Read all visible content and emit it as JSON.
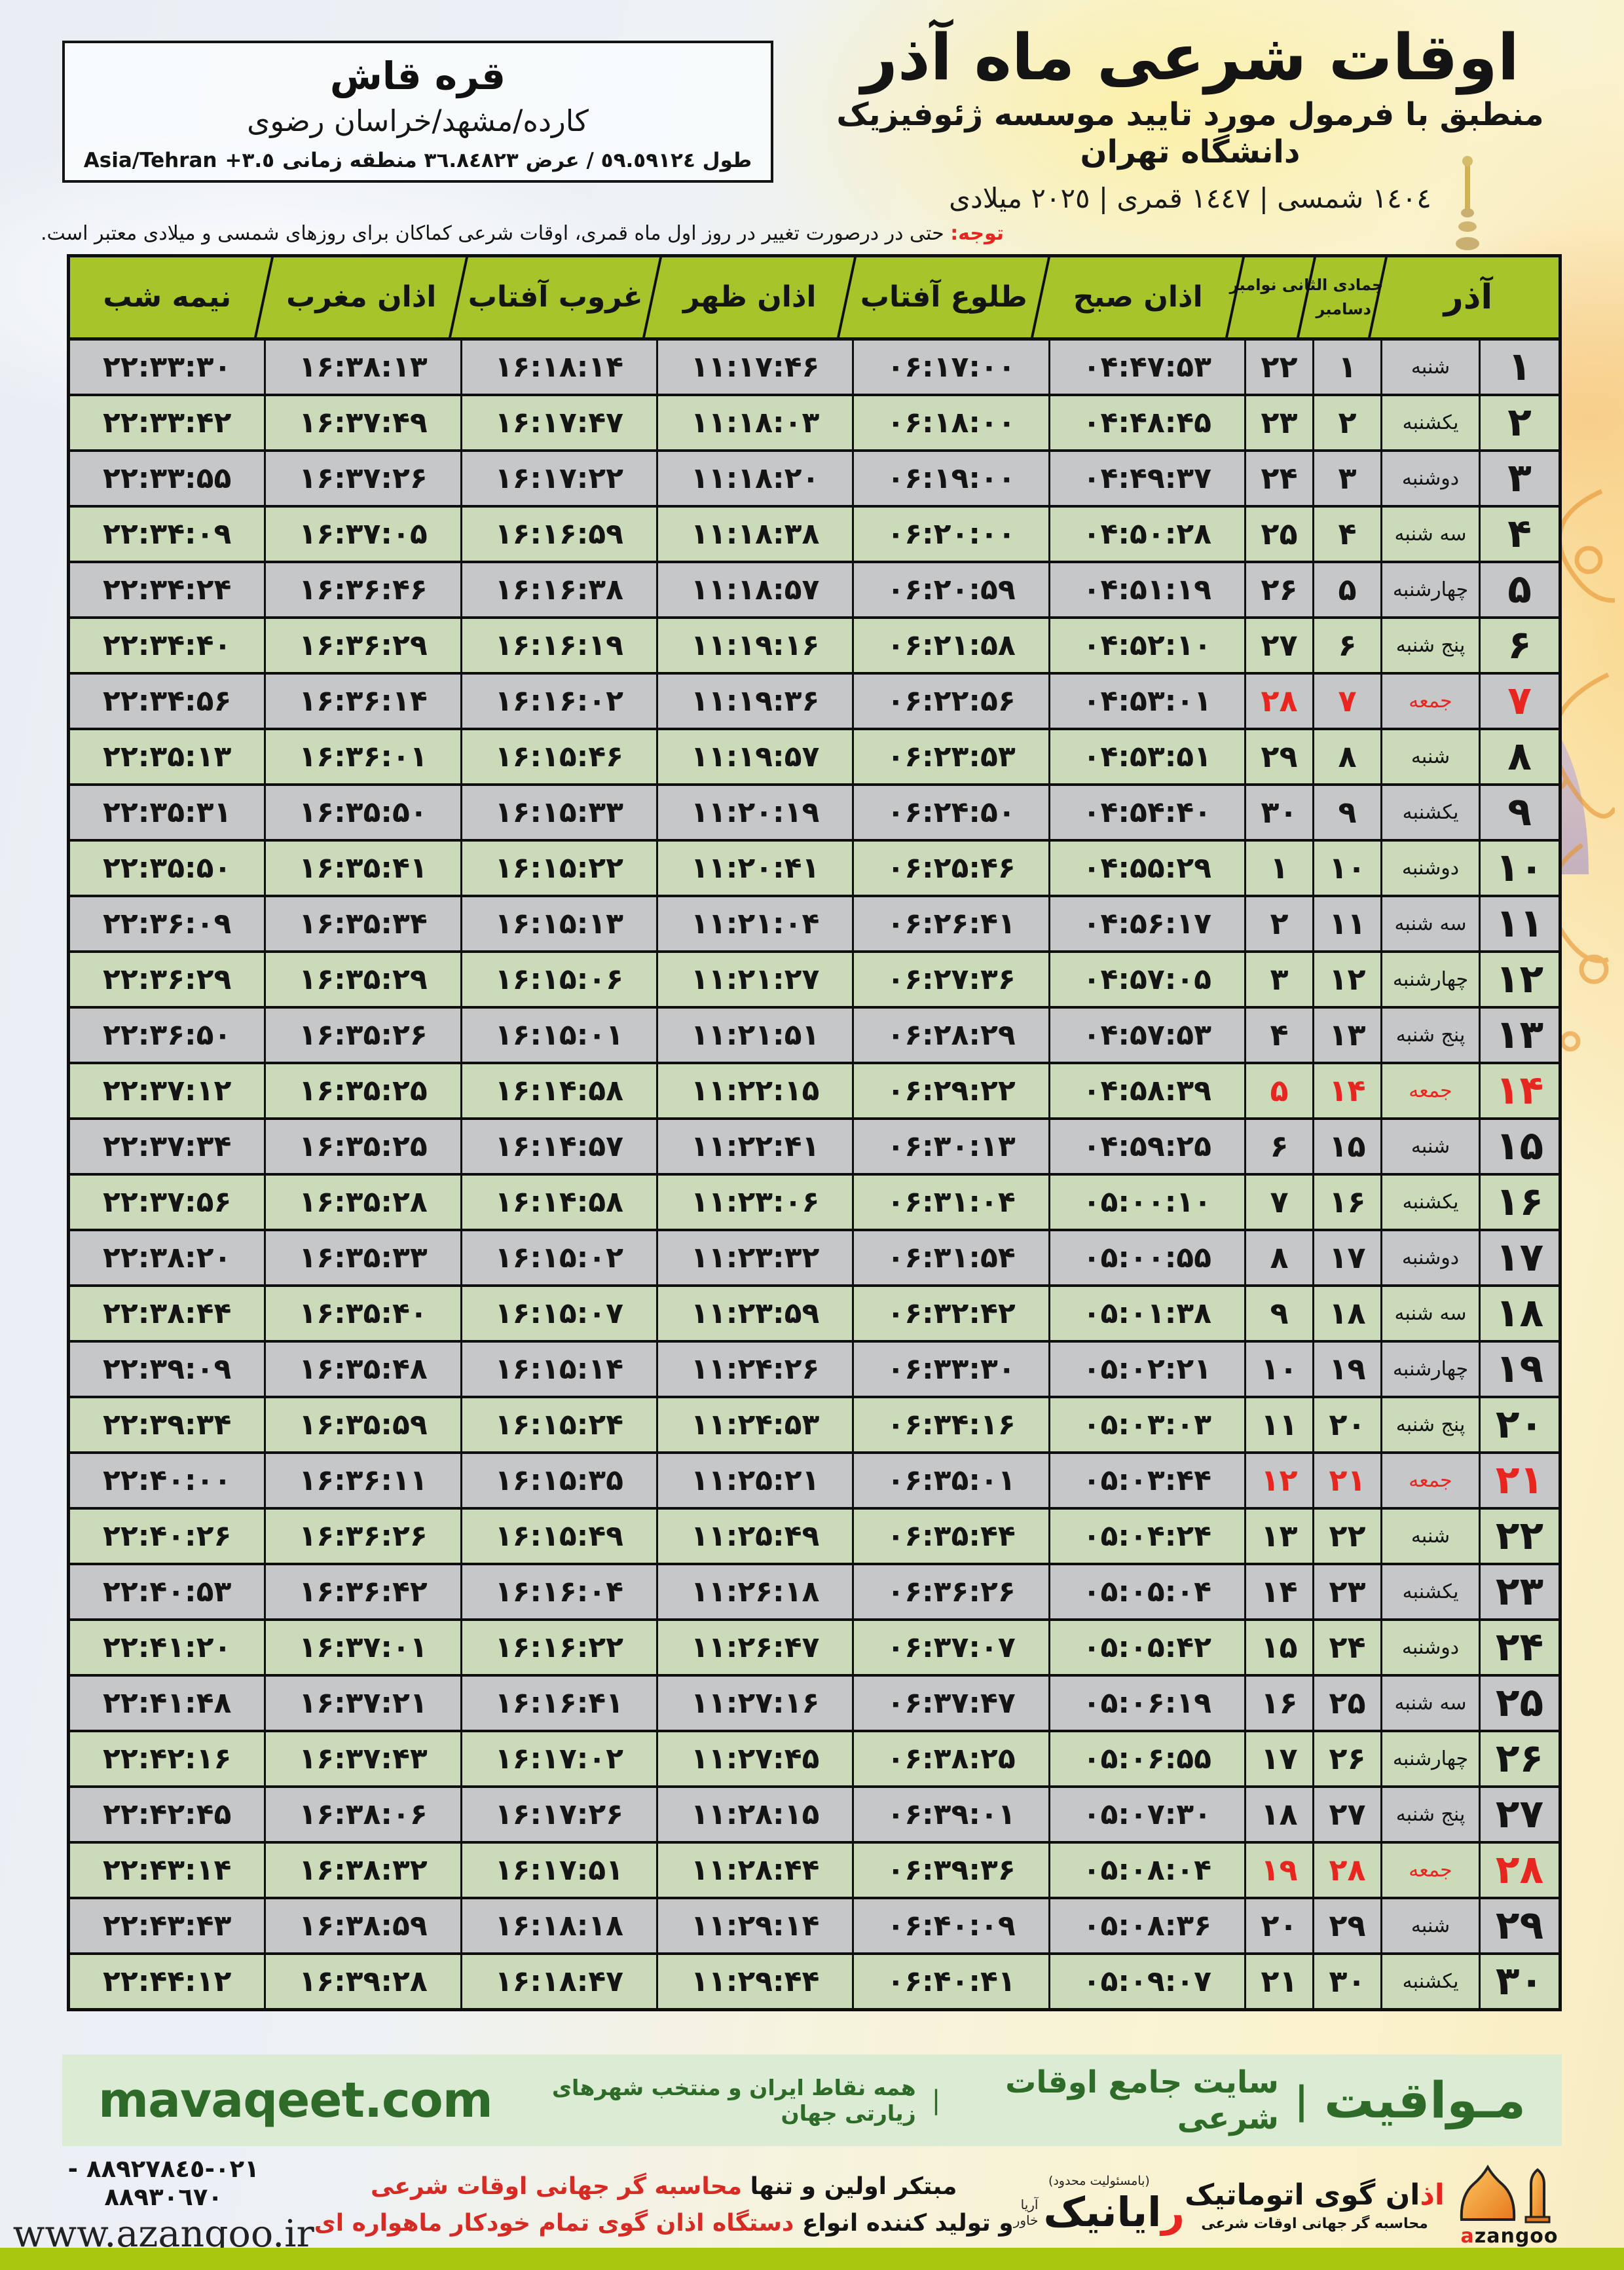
{
  "meta": {
    "title": "اوقات شرعی ماه آذر",
    "subtitle": "منطبق با فرمول مورد تایید موسسه ژئوفیزیک دانشگاه تهران",
    "dates": "١٤٠٤ شمسی | ١٤٤٧ قمری | ٢٠٢٥ میلادی"
  },
  "location": {
    "name": "قره قاش",
    "region": "کارده/مشهد/خراسان رضوی",
    "coords": "طول ٥٩.٥٩١٢٤ / عرض ٣٦.٨٤٨٢٣ منطقه زمانی",
    "tz_offset": "+٣.٥",
    "tz": "Asia/Tehran"
  },
  "note": {
    "label": "توجه:",
    "text": "حتی در درصورت تغییر در روز اول ماه قمری، اوقات شرعی کماکان برای روزهای شمسی و میلادی معتبر است."
  },
  "table": {
    "headers": {
      "azar": "آذر",
      "months_line1": "جمادی الثانی نوامبر",
      "months_line2": "دسامبر",
      "fajr": "اذان صبح",
      "sunrise": "طلوع آفتاب",
      "noon": "اذان ظهر",
      "sunset": "غروب آفتاب",
      "maghrib": "اذان مغرب",
      "midnight": "نیمه شب"
    },
    "rows": [
      {
        "azar": "۱",
        "weekday": "شنبه",
        "hijri": "۱",
        "greg": "۲۲",
        "fajr": "۰۴:۴۷:۵۳",
        "sunrise": "۰۶:۱۷:۰۰",
        "noon": "۱۱:۱۷:۴۶",
        "sunset": "۱۶:۱۸:۱۴",
        "maghrib": "۱۶:۳۸:۱۳",
        "midnight": "۲۲:۳۳:۳۰"
      },
      {
        "azar": "۲",
        "weekday": "یکشنبه",
        "hijri": "۲",
        "greg": "۲۳",
        "fajr": "۰۴:۴۸:۴۵",
        "sunrise": "۰۶:۱۸:۰۰",
        "noon": "۱۱:۱۸:۰۳",
        "sunset": "۱۶:۱۷:۴۷",
        "maghrib": "۱۶:۳۷:۴۹",
        "midnight": "۲۲:۳۳:۴۲"
      },
      {
        "azar": "۳",
        "weekday": "دوشنبه",
        "hijri": "۳",
        "greg": "۲۴",
        "fajr": "۰۴:۴۹:۳۷",
        "sunrise": "۰۶:۱۹:۰۰",
        "noon": "۱۱:۱۸:۲۰",
        "sunset": "۱۶:۱۷:۲۲",
        "maghrib": "۱۶:۳۷:۲۶",
        "midnight": "۲۲:۳۳:۵۵"
      },
      {
        "azar": "۴",
        "weekday": "سه شنبه",
        "hijri": "۴",
        "greg": "۲۵",
        "fajr": "۰۴:۵۰:۲۸",
        "sunrise": "۰۶:۲۰:۰۰",
        "noon": "۱۱:۱۸:۳۸",
        "sunset": "۱۶:۱۶:۵۹",
        "maghrib": "۱۶:۳۷:۰۵",
        "midnight": "۲۲:۳۴:۰۹"
      },
      {
        "azar": "۵",
        "weekday": "چهارشنبه",
        "hijri": "۵",
        "greg": "۲۶",
        "fajr": "۰۴:۵۱:۱۹",
        "sunrise": "۰۶:۲۰:۵۹",
        "noon": "۱۱:۱۸:۵۷",
        "sunset": "۱۶:۱۶:۳۸",
        "maghrib": "۱۶:۳۶:۴۶",
        "midnight": "۲۲:۳۴:۲۴"
      },
      {
        "azar": "۶",
        "weekday": "پنج شنبه",
        "hijri": "۶",
        "greg": "۲۷",
        "fajr": "۰۴:۵۲:۱۰",
        "sunrise": "۰۶:۲۱:۵۸",
        "noon": "۱۱:۱۹:۱۶",
        "sunset": "۱۶:۱۶:۱۹",
        "maghrib": "۱۶:۳۶:۲۹",
        "midnight": "۲۲:۳۴:۴۰"
      },
      {
        "azar": "۷",
        "weekday": "جمعه",
        "hijri": "۷",
        "greg": "۲۸",
        "fajr": "۰۴:۵۳:۰۱",
        "sunrise": "۰۶:۲۲:۵۶",
        "noon": "۱۱:۱۹:۳۶",
        "sunset": "۱۶:۱۶:۰۲",
        "maghrib": "۱۶:۳۶:۱۴",
        "midnight": "۲۲:۳۴:۵۶"
      },
      {
        "azar": "۸",
        "weekday": "شنبه",
        "hijri": "۸",
        "greg": "۲۹",
        "fajr": "۰۴:۵۳:۵۱",
        "sunrise": "۰۶:۲۳:۵۳",
        "noon": "۱۱:۱۹:۵۷",
        "sunset": "۱۶:۱۵:۴۶",
        "maghrib": "۱۶:۳۶:۰۱",
        "midnight": "۲۲:۳۵:۱۳"
      },
      {
        "azar": "۹",
        "weekday": "یکشنبه",
        "hijri": "۹",
        "greg": "۳۰",
        "fajr": "۰۴:۵۴:۴۰",
        "sunrise": "۰۶:۲۴:۵۰",
        "noon": "۱۱:۲۰:۱۹",
        "sunset": "۱۶:۱۵:۳۳",
        "maghrib": "۱۶:۳۵:۵۰",
        "midnight": "۲۲:۳۵:۳۱"
      },
      {
        "azar": "۱۰",
        "weekday": "دوشنبه",
        "hijri": "۱۰",
        "greg": "۱",
        "fajr": "۰۴:۵۵:۲۹",
        "sunrise": "۰۶:۲۵:۴۶",
        "noon": "۱۱:۲۰:۴۱",
        "sunset": "۱۶:۱۵:۲۲",
        "maghrib": "۱۶:۳۵:۴۱",
        "midnight": "۲۲:۳۵:۵۰"
      },
      {
        "azar": "۱۱",
        "weekday": "سه شنبه",
        "hijri": "۱۱",
        "greg": "۲",
        "fajr": "۰۴:۵۶:۱۷",
        "sunrise": "۰۶:۲۶:۴۱",
        "noon": "۱۱:۲۱:۰۴",
        "sunset": "۱۶:۱۵:۱۳",
        "maghrib": "۱۶:۳۵:۳۴",
        "midnight": "۲۲:۳۶:۰۹"
      },
      {
        "azar": "۱۲",
        "weekday": "چهارشنبه",
        "hijri": "۱۲",
        "greg": "۳",
        "fajr": "۰۴:۵۷:۰۵",
        "sunrise": "۰۶:۲۷:۳۶",
        "noon": "۱۱:۲۱:۲۷",
        "sunset": "۱۶:۱۵:۰۶",
        "maghrib": "۱۶:۳۵:۲۹",
        "midnight": "۲۲:۳۶:۲۹"
      },
      {
        "azar": "۱۳",
        "weekday": "پنج شنبه",
        "hijri": "۱۳",
        "greg": "۴",
        "fajr": "۰۴:۵۷:۵۳",
        "sunrise": "۰۶:۲۸:۲۹",
        "noon": "۱۱:۲۱:۵۱",
        "sunset": "۱۶:۱۵:۰۱",
        "maghrib": "۱۶:۳۵:۲۶",
        "midnight": "۲۲:۳۶:۵۰"
      },
      {
        "azar": "۱۴",
        "weekday": "جمعه",
        "hijri": "۱۴",
        "greg": "۵",
        "fajr": "۰۴:۵۸:۳۹",
        "sunrise": "۰۶:۲۹:۲۲",
        "noon": "۱۱:۲۲:۱۵",
        "sunset": "۱۶:۱۴:۵۸",
        "maghrib": "۱۶:۳۵:۲۵",
        "midnight": "۲۲:۳۷:۱۲"
      },
      {
        "azar": "۱۵",
        "weekday": "شنبه",
        "hijri": "۱۵",
        "greg": "۶",
        "fajr": "۰۴:۵۹:۲۵",
        "sunrise": "۰۶:۳۰:۱۳",
        "noon": "۱۱:۲۲:۴۱",
        "sunset": "۱۶:۱۴:۵۷",
        "maghrib": "۱۶:۳۵:۲۵",
        "midnight": "۲۲:۳۷:۳۴"
      },
      {
        "azar": "۱۶",
        "weekday": "یکشنبه",
        "hijri": "۱۶",
        "greg": "۷",
        "fajr": "۰۵:۰۰:۱۰",
        "sunrise": "۰۶:۳۱:۰۴",
        "noon": "۱۱:۲۳:۰۶",
        "sunset": "۱۶:۱۴:۵۸",
        "maghrib": "۱۶:۳۵:۲۸",
        "midnight": "۲۲:۳۷:۵۶"
      },
      {
        "azar": "۱۷",
        "weekday": "دوشنبه",
        "hijri": "۱۷",
        "greg": "۸",
        "fajr": "۰۵:۰۰:۵۵",
        "sunrise": "۰۶:۳۱:۵۴",
        "noon": "۱۱:۲۳:۳۲",
        "sunset": "۱۶:۱۵:۰۲",
        "maghrib": "۱۶:۳۵:۳۳",
        "midnight": "۲۲:۳۸:۲۰"
      },
      {
        "azar": "۱۸",
        "weekday": "سه شنبه",
        "hijri": "۱۸",
        "greg": "۹",
        "fajr": "۰۵:۰۱:۳۸",
        "sunrise": "۰۶:۳۲:۴۲",
        "noon": "۱۱:۲۳:۵۹",
        "sunset": "۱۶:۱۵:۰۷",
        "maghrib": "۱۶:۳۵:۴۰",
        "midnight": "۲۲:۳۸:۴۴"
      },
      {
        "azar": "۱۹",
        "weekday": "چهارشنبه",
        "hijri": "۱۹",
        "greg": "۱۰",
        "fajr": "۰۵:۰۲:۲۱",
        "sunrise": "۰۶:۳۳:۳۰",
        "noon": "۱۱:۲۴:۲۶",
        "sunset": "۱۶:۱۵:۱۴",
        "maghrib": "۱۶:۳۵:۴۸",
        "midnight": "۲۲:۳۹:۰۹"
      },
      {
        "azar": "۲۰",
        "weekday": "پنج شنبه",
        "hijri": "۲۰",
        "greg": "۱۱",
        "fajr": "۰۵:۰۳:۰۳",
        "sunrise": "۰۶:۳۴:۱۶",
        "noon": "۱۱:۲۴:۵۳",
        "sunset": "۱۶:۱۵:۲۴",
        "maghrib": "۱۶:۳۵:۵۹",
        "midnight": "۲۲:۳۹:۳۴"
      },
      {
        "azar": "۲۱",
        "weekday": "جمعه",
        "hijri": "۲۱",
        "greg": "۱۲",
        "fajr": "۰۵:۰۳:۴۴",
        "sunrise": "۰۶:۳۵:۰۱",
        "noon": "۱۱:۲۵:۲۱",
        "sunset": "۱۶:۱۵:۳۵",
        "maghrib": "۱۶:۳۶:۱۱",
        "midnight": "۲۲:۴۰:۰۰"
      },
      {
        "azar": "۲۲",
        "weekday": "شنبه",
        "hijri": "۲۲",
        "greg": "۱۳",
        "fajr": "۰۵:۰۴:۲۴",
        "sunrise": "۰۶:۳۵:۴۴",
        "noon": "۱۱:۲۵:۴۹",
        "sunset": "۱۶:۱۵:۴۹",
        "maghrib": "۱۶:۳۶:۲۶",
        "midnight": "۲۲:۴۰:۲۶"
      },
      {
        "azar": "۲۳",
        "weekday": "یکشنبه",
        "hijri": "۲۳",
        "greg": "۱۴",
        "fajr": "۰۵:۰۵:۰۴",
        "sunrise": "۰۶:۳۶:۲۶",
        "noon": "۱۱:۲۶:۱۸",
        "sunset": "۱۶:۱۶:۰۴",
        "maghrib": "۱۶:۳۶:۴۲",
        "midnight": "۲۲:۴۰:۵۳"
      },
      {
        "azar": "۲۴",
        "weekday": "دوشنبه",
        "hijri": "۲۴",
        "greg": "۱۵",
        "fajr": "۰۵:۰۵:۴۲",
        "sunrise": "۰۶:۳۷:۰۷",
        "noon": "۱۱:۲۶:۴۷",
        "sunset": "۱۶:۱۶:۲۲",
        "maghrib": "۱۶:۳۷:۰۱",
        "midnight": "۲۲:۴۱:۲۰"
      },
      {
        "azar": "۲۵",
        "weekday": "سه شنبه",
        "hijri": "۲۵",
        "greg": "۱۶",
        "fajr": "۰۵:۰۶:۱۹",
        "sunrise": "۰۶:۳۷:۴۷",
        "noon": "۱۱:۲۷:۱۶",
        "sunset": "۱۶:۱۶:۴۱",
        "maghrib": "۱۶:۳۷:۲۱",
        "midnight": "۲۲:۴۱:۴۸"
      },
      {
        "azar": "۲۶",
        "weekday": "چهارشنبه",
        "hijri": "۲۶",
        "greg": "۱۷",
        "fajr": "۰۵:۰۶:۵۵",
        "sunrise": "۰۶:۳۸:۲۵",
        "noon": "۱۱:۲۷:۴۵",
        "sunset": "۱۶:۱۷:۰۲",
        "maghrib": "۱۶:۳۷:۴۳",
        "midnight": "۲۲:۴۲:۱۶"
      },
      {
        "azar": "۲۷",
        "weekday": "پنج شنبه",
        "hijri": "۲۷",
        "greg": "۱۸",
        "fajr": "۰۵:۰۷:۳۰",
        "sunrise": "۰۶:۳۹:۰۱",
        "noon": "۱۱:۲۸:۱۵",
        "sunset": "۱۶:۱۷:۲۶",
        "maghrib": "۱۶:۳۸:۰۶",
        "midnight": "۲۲:۴۲:۴۵"
      },
      {
        "azar": "۲۸",
        "weekday": "جمعه",
        "hijri": "۲۸",
        "greg": "۱۹",
        "fajr": "۰۵:۰۸:۰۴",
        "sunrise": "۰۶:۳۹:۳۶",
        "noon": "۱۱:۲۸:۴۴",
        "sunset": "۱۶:۱۷:۵۱",
        "maghrib": "۱۶:۳۸:۳۲",
        "midnight": "۲۲:۴۳:۱۴"
      },
      {
        "azar": "۲۹",
        "weekday": "شنبه",
        "hijri": "۲۹",
        "greg": "۲۰",
        "fajr": "۰۵:۰۸:۳۶",
        "sunrise": "۰۶:۴۰:۰۹",
        "noon": "۱۱:۲۹:۱۴",
        "sunset": "۱۶:۱۸:۱۸",
        "maghrib": "۱۶:۳۸:۵۹",
        "midnight": "۲۲:۴۳:۴۳"
      },
      {
        "azar": "۳۰",
        "weekday": "یکشنبه",
        "hijri": "۳۰",
        "greg": "۲۱",
        "fajr": "۰۵:۰۹:۰۷",
        "sunrise": "۰۶:۴۰:۴۱",
        "noon": "۱۱:۲۹:۴۴",
        "sunset": "۱۶:۱۸:۴۷",
        "maghrib": "۱۶:۳۹:۲۸",
        "midnight": "۲۲:۴۴:۱۲"
      }
    ]
  },
  "banner": {
    "brand": "مـواقیت",
    "sep": "|",
    "tag1": "سایت جامع اوقات شرعی",
    "tag2": "همه نقاط ایران و منتخب شهرهای زیارتی جهان",
    "site": "mavaqeet.com"
  },
  "footer": {
    "phones": "٠٢١-٨٨٩٢٧٨٤٥ - ٨٨٩٣٠٦٧٠",
    "website": "www.azangoo.ir",
    "promo1_black": "مبتکر اولین و تنها",
    "promo1_red": "محاسبه گر جهانی اوقات شرعی",
    "promo2_black": "و تولید کننده انواع",
    "promo2_red": "دستگاه اذان گوی تمام خودکار ماهواره ای",
    "rayanik_top": "(بامسئولیت محدود)",
    "rayanik_first": "ر",
    "rayanik_rest": "ایانیک",
    "rayanik_side1": "آریا",
    "rayanik_side2": "خاور",
    "azangoo_red": "اذ",
    "azangoo_black": "ان گوی اتوماتیک",
    "azangoo_sub": "محاسبه گر جهانی اوقات شرعی",
    "azangoo_en_a": "a",
    "azangoo_en_rest": "zangoo"
  },
  "colors": {
    "header_green": "#a6c52b",
    "row_green": "#d9e8c4",
    "friday_red": "#e7261f",
    "banner_bg": "#dcebd3",
    "banner_text": "#2e6b28",
    "bottom_bar": "#a8c60e",
    "azangoo_orange": "#f0912d"
  }
}
